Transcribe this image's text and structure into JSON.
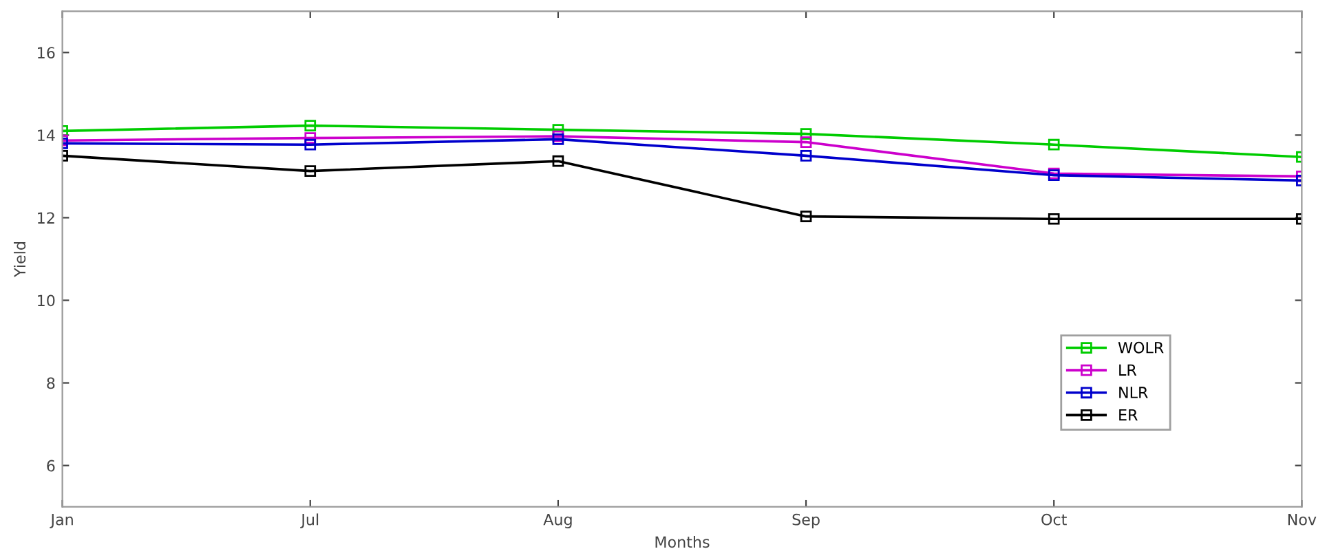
{
  "chart_data": {
    "type": "line",
    "xlabel": "Months",
    "ylabel": "Yield",
    "categories": [
      "Jan",
      "Jul",
      "Aug",
      "Sep",
      "Oct",
      "Nov"
    ],
    "series": [
      {
        "name": "WOLR",
        "color": "#00cc00",
        "values": [
          14.1,
          14.23,
          14.13,
          14.03,
          13.77,
          13.47
        ]
      },
      {
        "name": "LR",
        "color": "#cc00cc",
        "values": [
          13.87,
          13.93,
          13.97,
          13.83,
          13.07,
          13.0
        ]
      },
      {
        "name": "NLR",
        "color": "#0000cc",
        "values": [
          13.8,
          13.77,
          13.9,
          13.5,
          13.03,
          12.9
        ]
      },
      {
        "name": "ER",
        "color": "#000000",
        "values": [
          13.5,
          13.13,
          13.37,
          12.03,
          11.97,
          11.97
        ]
      }
    ],
    "ylim": [
      5,
      17
    ],
    "yticks": [
      6,
      8,
      10,
      12,
      14,
      16
    ],
    "grid": false,
    "legend": "bottom right",
    "marker": "square",
    "line_style": "solid"
  }
}
